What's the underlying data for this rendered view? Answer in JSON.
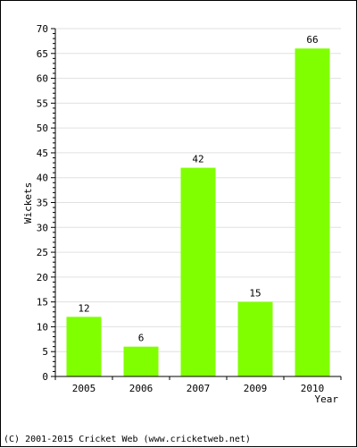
{
  "chart_data": {
    "type": "bar",
    "title": "",
    "categories": [
      "2005",
      "2006",
      "2007",
      "2009",
      "2010"
    ],
    "values": [
      12,
      6,
      42,
      15,
      66
    ],
    "data_labels": [
      "12",
      "6",
      "42",
      "15",
      "66"
    ],
    "xlabel": "Year",
    "ylabel": "Wickets",
    "ylim": [
      0,
      70
    ],
    "yticks": [
      0,
      5,
      10,
      15,
      20,
      25,
      30,
      35,
      40,
      45,
      50,
      55,
      60,
      65,
      70
    ],
    "grid": true,
    "bar_color": "#80ff00",
    "grid_color": "#e0e0e0"
  },
  "footer": {
    "copyright": "(C) 2001-2015 Cricket Web (www.cricketweb.net)"
  }
}
